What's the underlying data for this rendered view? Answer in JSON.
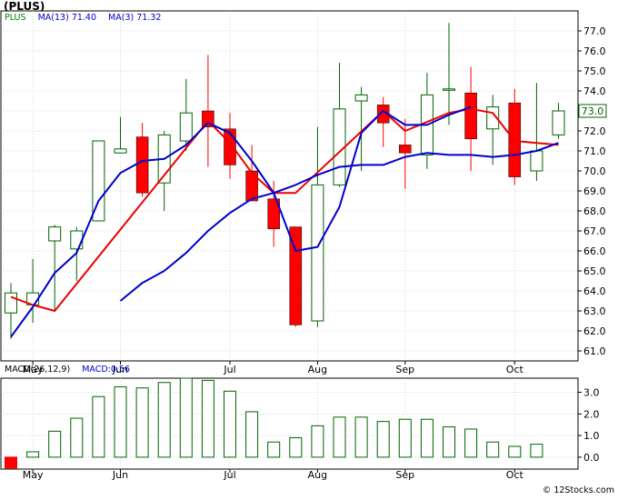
{
  "title": "(PLUS)",
  "credit": "© 12Stocks.com",
  "legend": {
    "symbol": "PLUS",
    "ma13": "MA(13)",
    "ma13_value": "71.40",
    "ma3": "MA(3)",
    "ma3_value": "71.32"
  },
  "macd_legend": {
    "label": "MACD(26,12,9)",
    "value_label": "MACD:0.56"
  },
  "last_price_label": "73.0",
  "colors": {
    "up_candle": "#006400",
    "down_candle": "#ff0000",
    "ma13_line": "#0000cc",
    "ma3_line": "#ee0000",
    "macd_bar": "#006400",
    "macd_negative": "#ff0000",
    "legend_green": "#008000",
    "legend_blue": "#0000cc",
    "grid": "#bbbbbb"
  },
  "chart_data": [
    {
      "type": "candlestick",
      "title": "(PLUS)",
      "ylim": [
        60.5,
        78.0
      ],
      "yticks": [
        61.0,
        62.0,
        63.0,
        64.0,
        65.0,
        66.0,
        67.0,
        68.0,
        69.0,
        70.0,
        71.0,
        72.0,
        73.0,
        74.0,
        75.0,
        76.0,
        77.0
      ],
      "x_labels": [
        {
          "index": 1,
          "label": "May"
        },
        {
          "index": 5,
          "label": "Jun"
        },
        {
          "index": 10,
          "label": "Jul"
        },
        {
          "index": 14,
          "label": "Aug"
        },
        {
          "index": 18,
          "label": "Sep"
        },
        {
          "index": 23,
          "label": "Oct"
        }
      ],
      "grid": true,
      "candles": [
        {
          "open": 62.9,
          "high": 64.4,
          "low": 61.6,
          "close": 63.9
        },
        {
          "open": 63.3,
          "high": 65.6,
          "low": 62.4,
          "close": 63.9
        },
        {
          "open": 66.5,
          "high": 67.3,
          "low": 63.0,
          "close": 67.2
        },
        {
          "open": 66.1,
          "high": 67.2,
          "low": 64.5,
          "close": 67.0
        },
        {
          "open": 67.5,
          "high": 71.5,
          "low": 67.5,
          "close": 71.5
        },
        {
          "open": 70.9,
          "high": 72.7,
          "low": 70.9,
          "close": 71.1
        },
        {
          "open": 71.7,
          "high": 72.4,
          "low": 68.7,
          "close": 68.9
        },
        {
          "open": 69.4,
          "high": 72.0,
          "low": 68.0,
          "close": 71.8
        },
        {
          "open": 71.5,
          "high": 74.6,
          "low": 71.0,
          "close": 72.9
        },
        {
          "open": 73.0,
          "high": 75.8,
          "low": 70.2,
          "close": 72.2
        },
        {
          "open": 72.1,
          "high": 72.9,
          "low": 69.6,
          "close": 70.3
        },
        {
          "open": 70.0,
          "high": 71.3,
          "low": 68.5,
          "close": 68.5
        },
        {
          "open": 68.6,
          "high": 69.5,
          "low": 66.2,
          "close": 67.1
        },
        {
          "open": 67.2,
          "high": 67.2,
          "low": 62.2,
          "close": 62.3
        },
        {
          "open": 62.5,
          "high": 72.2,
          "low": 62.2,
          "close": 69.3
        },
        {
          "open": 69.3,
          "high": 75.4,
          "low": 69.2,
          "close": 73.1
        },
        {
          "open": 73.5,
          "high": 74.2,
          "low": 70.0,
          "close": 73.8
        },
        {
          "open": 73.3,
          "high": 73.7,
          "low": 71.2,
          "close": 72.4
        },
        {
          "open": 71.3,
          "high": 72.6,
          "low": 69.1,
          "close": 70.9
        },
        {
          "open": 70.8,
          "high": 74.9,
          "low": 70.1,
          "close": 73.8
        },
        {
          "open": 74.1,
          "high": 77.4,
          "low": 72.3,
          "close": 74.1
        },
        {
          "open": 73.9,
          "high": 75.2,
          "low": 70.0,
          "close": 71.6
        },
        {
          "open": 72.1,
          "high": 73.8,
          "low": 70.3,
          "close": 73.2
        },
        {
          "open": 73.4,
          "high": 74.1,
          "low": 69.3,
          "close": 69.7
        },
        {
          "open": 70.0,
          "high": 74.4,
          "low": 69.5,
          "close": 71.0
        },
        {
          "open": 71.8,
          "high": 73.4,
          "low": 71.6,
          "close": 73.0
        }
      ],
      "ma3": [
        {
          "index": 0,
          "value": 63.7
        },
        {
          "index": 1,
          "value": 63.3
        },
        {
          "index": 2,
          "value": 63.0
        },
        {
          "index": 9,
          "value": 72.5
        },
        {
          "index": 10,
          "value": 71.4
        },
        {
          "index": 11,
          "value": 69.9
        },
        {
          "index": 12,
          "value": 68.9
        },
        {
          "index": 13,
          "value": 68.9
        },
        {
          "index": 17,
          "value": 73.0
        },
        {
          "index": 18,
          "value": 72.0
        },
        {
          "index": 20,
          "value": 72.9
        },
        {
          "index": 21,
          "value": 73.1
        },
        {
          "index": 22,
          "value": 72.9
        },
        {
          "index": 23,
          "value": 71.5
        },
        {
          "index": 24,
          "value": 71.4
        },
        {
          "index": 25,
          "value": 71.3
        }
      ],
      "ma13": [
        {
          "index": 0,
          "value": 61.7
        },
        {
          "index": 1,
          "value": 63.2
        },
        {
          "index": 2,
          "value": 64.9
        },
        {
          "index": 3,
          "value": 65.9
        },
        {
          "index": 4,
          "value": 68.5
        },
        {
          "index": 5,
          "value": 69.9
        },
        {
          "index": 6,
          "value": 70.5
        },
        {
          "index": 7,
          "value": 70.6
        },
        {
          "index": 8,
          "value": 71.3
        },
        {
          "index": 9,
          "value": 72.4
        },
        {
          "index": 10,
          "value": 71.9
        },
        {
          "index": 11,
          "value": 70.5
        },
        {
          "index": 12,
          "value": 68.9
        },
        {
          "index": 13,
          "value": 66.0
        },
        {
          "index": 14,
          "value": 66.2
        },
        {
          "index": 15,
          "value": 68.2
        },
        {
          "index": 16,
          "value": 71.9
        },
        {
          "index": 17,
          "value": 73.0
        },
        {
          "index": 18,
          "value": 72.3
        },
        {
          "index": 19,
          "value": 72.3
        },
        {
          "index": 20,
          "value": 72.8
        },
        {
          "index": 21,
          "value": 73.2
        }
      ],
      "ma13_tail": [
        {
          "index": 5,
          "value": 63.5
        },
        {
          "index": 6,
          "value": 64.4
        },
        {
          "index": 7,
          "value": 65.0
        },
        {
          "index": 8,
          "value": 65.9
        },
        {
          "index": 9,
          "value": 67.0
        },
        {
          "index": 10,
          "value": 67.9
        },
        {
          "index": 11,
          "value": 68.6
        },
        {
          "index": 12,
          "value": 68.9
        },
        {
          "index": 13,
          "value": 69.3
        },
        {
          "index": 14,
          "value": 69.8
        },
        {
          "index": 15,
          "value": 70.2
        },
        {
          "index": 16,
          "value": 70.3
        },
        {
          "index": 17,
          "value": 70.3
        },
        {
          "index": 18,
          "value": 70.7
        },
        {
          "index": 19,
          "value": 70.9
        },
        {
          "index": 20,
          "value": 70.8
        },
        {
          "index": 21,
          "value": 70.8
        },
        {
          "index": 22,
          "value": 70.7
        },
        {
          "index": 23,
          "value": 70.8
        },
        {
          "index": 24,
          "value": 71.0
        },
        {
          "index": 25,
          "value": 71.4
        }
      ]
    },
    {
      "type": "bar",
      "title": "MACD(26,12,9)",
      "ylim": [
        -0.55,
        3.65
      ],
      "yticks": [
        0.0,
        1.0,
        2.0,
        3.0
      ],
      "x_labels": [
        {
          "index": 1,
          "label": "May"
        },
        {
          "index": 5,
          "label": "Jun"
        },
        {
          "index": 10,
          "label": "Jul"
        },
        {
          "index": 14,
          "label": "Aug"
        },
        {
          "index": 18,
          "label": "Sep"
        },
        {
          "index": 23,
          "label": "Oct"
        }
      ],
      "values": [
        -0.5,
        0.25,
        1.2,
        1.8,
        2.8,
        3.25,
        3.2,
        3.45,
        3.65,
        3.55,
        3.05,
        2.1,
        0.7,
        0.9,
        1.45,
        1.85,
        1.85,
        1.65,
        1.75,
        1.75,
        1.4,
        1.3,
        0.7,
        0.5,
        0.6
      ]
    }
  ]
}
